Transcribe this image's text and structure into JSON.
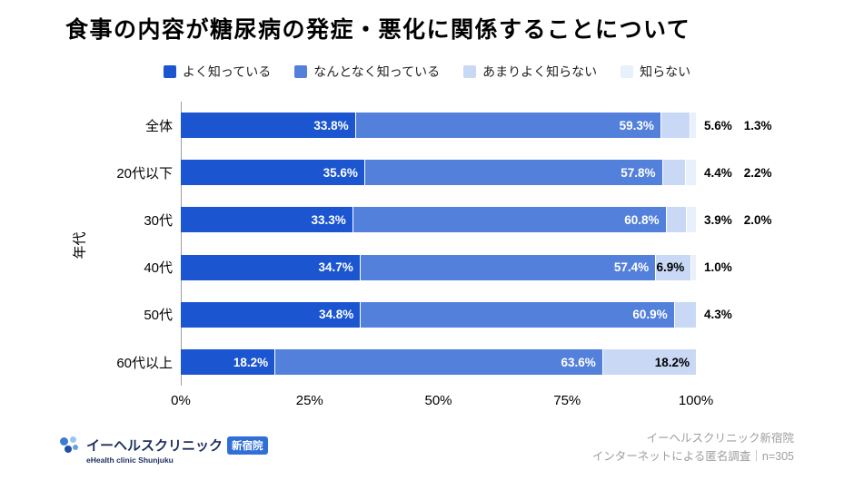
{
  "title": "食事の内容が糖尿病の発症・悪化に関係することについて",
  "chart_data": {
    "type": "bar",
    "stacked": true,
    "orientation": "horizontal",
    "title": "食事の内容が糖尿病の発症・悪化に関係することについて",
    "categories": [
      "全体",
      "20代以下",
      "30代",
      "40代",
      "50代",
      "60代以上"
    ],
    "series": [
      {
        "name": "よく知っている",
        "color": "#1b55d0",
        "label_color": "#ffffff",
        "values": [
          33.8,
          35.6,
          33.3,
          34.7,
          34.8,
          18.2
        ]
      },
      {
        "name": "なんとなく知っている",
        "color": "#5380db",
        "label_color": "#ffffff",
        "values": [
          59.3,
          57.8,
          60.8,
          57.4,
          60.9,
          63.6
        ]
      },
      {
        "name": "あまりよく知らない",
        "color": "#c9d8f5",
        "label_color": "#000000",
        "values": [
          5.6,
          4.4,
          3.9,
          6.9,
          4.3,
          18.2
        ]
      },
      {
        "name": "知らない",
        "color": "#e8f0fb",
        "label_color": "#000000",
        "values": [
          1.3,
          2.2,
          2.0,
          1.0,
          0,
          0
        ]
      }
    ],
    "xlabel": "",
    "ylabel": "年代",
    "x_ticks": [
      "0%",
      "25%",
      "50%",
      "75%",
      "100%"
    ],
    "xlim": [
      0,
      100
    ],
    "inside_label_min": 6.5,
    "legend_position": "top",
    "grid": false
  },
  "footer": {
    "logo_text": "イーヘルスクリニック",
    "logo_badge": "新宿院",
    "logo_subtext": "eHealth clinic Shunjuku",
    "source_line1": "イーヘルスクリニック新宿院",
    "source_line2": "インターネットによる匿名調査｜n=305"
  }
}
